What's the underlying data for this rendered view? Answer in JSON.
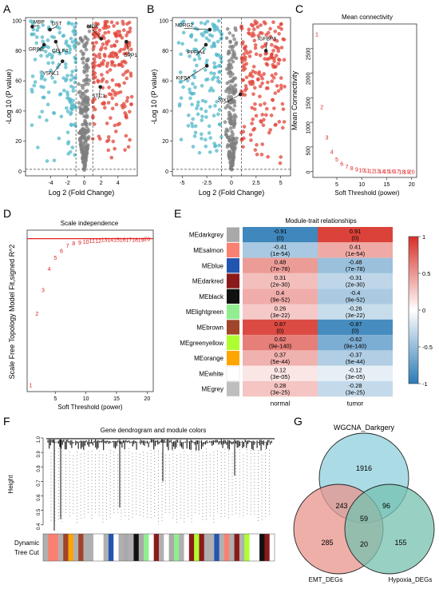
{
  "panel_letters": [
    "A",
    "B",
    "C",
    "D",
    "E",
    "F",
    "G"
  ],
  "colors": {
    "up": "#e2463a",
    "down": "#54b9c9",
    "ns": "#7f7f7f",
    "threshold_text": "#e02020",
    "threshold_line": "#e02020",
    "heat_pos": "#d73027",
    "heat_neg": "#2c7bb6",
    "venn_wgcna": "#8fd0de",
    "venn_emt": "#e8948c",
    "venn_hypoxia": "#76c2b0"
  },
  "chart_data": [
    {
      "panel": "A",
      "type": "scatter",
      "title": "",
      "xlabel": "Log 2 (Fold Change)",
      "ylabel": "-Log 10 (P value)",
      "xlim": [
        -7,
        6.3
      ],
      "ylim": [
        -3,
        102
      ],
      "xticks": [
        -4,
        -2,
        0,
        2,
        4
      ],
      "yticks": [
        0,
        20,
        40,
        60,
        80,
        100
      ],
      "fc_cutoff": [
        -1,
        1
      ],
      "p_cutoff": 1.3,
      "labels": [
        {
          "text": "MBP",
          "x": -6.2,
          "y": 96,
          "lx": -5.4,
          "ly": 98
        },
        {
          "text": "DST",
          "x": -4.1,
          "y": 94,
          "lx": -3.3,
          "ly": 97
        },
        {
          "text": "GRIN1",
          "x": -4.8,
          "y": 84,
          "lx": -5.7,
          "ly": 80
        },
        {
          "text": "CELF4",
          "x": -3.4,
          "y": 86,
          "lx": -2.9,
          "ly": 79
        },
        {
          "text": "VSNL1",
          "x": -2.6,
          "y": 73,
          "lx": -4.0,
          "ly": 64
        },
        {
          "text": "MDK",
          "x": 2.0,
          "y": 88,
          "lx": 1.0,
          "ly": 95
        },
        {
          "text": "SPP1",
          "x": 5.0,
          "y": 86,
          "lx": 5.5,
          "ly": 76
        },
        {
          "text": "STC1",
          "x": 1.9,
          "y": 56,
          "lx": 1.7,
          "ly": 49
        }
      ]
    },
    {
      "panel": "B",
      "type": "scatter",
      "title": "",
      "xlabel": "Log 2 (Fold Change)",
      "ylabel": "-Log 10 (P value)",
      "xlim": [
        -6,
        6
      ],
      "ylim": [
        -3,
        102
      ],
      "xticks": [
        -5.0,
        -2.5,
        0.0,
        2.5,
        5.0
      ],
      "yticks": [
        0,
        20,
        40,
        60,
        80,
        100
      ],
      "fc_cutoff": [
        -1,
        1
      ],
      "p_cutoff": 1.3,
      "labels": [
        {
          "text": "NDRG2",
          "x": -2.2,
          "y": 94,
          "lx": -4.8,
          "ly": 96
        },
        {
          "text": "PPFIA4",
          "x": -2.6,
          "y": 84,
          "lx": -3.6,
          "ly": 78
        },
        {
          "text": "IGFBP3",
          "x": 3.5,
          "y": 80,
          "lx": 3.6,
          "ly": 87
        },
        {
          "text": "KIF5A",
          "x": -2.5,
          "y": 70,
          "lx": -4.9,
          "ly": 61
        },
        {
          "text": "SIX1",
          "x": 0.9,
          "y": 51,
          "lx": -0.8,
          "ly": 46
        }
      ]
    },
    {
      "panel": "C",
      "type": "scatter",
      "title": "Mean connectivity",
      "xlabel": "Soft Threshold (power)",
      "ylabel": "Mean Connectivity",
      "xlim": [
        0.2,
        21
      ],
      "ylim": [
        -120,
        3000
      ],
      "xticks": [
        5,
        10,
        15,
        20
      ],
      "yticks": [
        0,
        500,
        1000,
        1500,
        2000,
        2500
      ],
      "x": [
        1,
        2,
        3,
        4,
        5,
        6,
        7,
        8,
        9,
        10,
        11,
        12,
        13,
        14,
        15,
        16,
        17,
        18,
        19,
        20
      ],
      "y": [
        2800,
        1320,
        700,
        410,
        255,
        165,
        110,
        75,
        52,
        38,
        28,
        21,
        16,
        12,
        9,
        7,
        6,
        5,
        4,
        3
      ],
      "point_labels": [
        "1",
        "2",
        "3",
        "4",
        "5",
        "6",
        "7",
        "8",
        "9",
        "10",
        "11",
        "12",
        "13",
        "14",
        "15",
        "16",
        "17",
        "18",
        "19",
        "20"
      ]
    },
    {
      "panel": "D",
      "type": "scatter",
      "title": "Scale independence",
      "xlabel": "Soft Threshold (power)",
      "ylabel": "Scale Free Topology Model Fit,signed R^2",
      "xlim": [
        0.4,
        21
      ],
      "ylim": [
        -0.9,
        1.0
      ],
      "xticks": [
        5,
        10,
        15,
        20
      ],
      "yticks": [],
      "hline": 0.9,
      "x": [
        1,
        2,
        3,
        4,
        5,
        6,
        7,
        8,
        9,
        10,
        11,
        12,
        13,
        14,
        15,
        16,
        17,
        18,
        19,
        20
      ],
      "y": [
        -0.82,
        0.02,
        0.3,
        0.55,
        0.68,
        0.76,
        0.82,
        0.85,
        0.86,
        0.87,
        0.88,
        0.88,
        0.89,
        0.89,
        0.89,
        0.89,
        0.89,
        0.89,
        0.89,
        0.9
      ],
      "point_labels": [
        "1",
        "2",
        "3",
        "4",
        "5",
        "6",
        "7",
        "8",
        "9",
        "10",
        "11",
        "12",
        "13",
        "14",
        "15",
        "16",
        "17",
        "18",
        "19",
        "20"
      ]
    },
    {
      "panel": "E",
      "type": "heatmap",
      "title": "Module-trait relationships",
      "columns": [
        "normal",
        "tumor"
      ],
      "rows": [
        {
          "module": "MEdarkgrey",
          "swatch": "#a9a9a9",
          "cells": [
            {
              "r": -0.91,
              "p": "(0)"
            },
            {
              "r": 0.91,
              "p": "(0)"
            }
          ]
        },
        {
          "module": "MEsalmon",
          "swatch": "#fa8072",
          "cells": [
            {
              "r": -0.41,
              "p": "(1e-54)"
            },
            {
              "r": 0.41,
              "p": "(1e-54)"
            }
          ]
        },
        {
          "module": "MEblue",
          "swatch": "#2255b0",
          "cells": [
            {
              "r": 0.48,
              "p": "(7e-78)"
            },
            {
              "r": -0.48,
              "p": "(7e-78)"
            }
          ]
        },
        {
          "module": "MEdarkred",
          "swatch": "#8b1a1a",
          "cells": [
            {
              "r": 0.31,
              "p": "(2e-30)"
            },
            {
              "r": -0.31,
              "p": "(2e-30)"
            }
          ]
        },
        {
          "module": "MEblack",
          "swatch": "#111111",
          "cells": [
            {
              "r": 0.4,
              "p": "(9e-52)"
            },
            {
              "r": -0.4,
              "p": "(9e-52)"
            }
          ]
        },
        {
          "module": "MElightgreen",
          "swatch": "#90ee90",
          "cells": [
            {
              "r": 0.26,
              "p": "(3e-22)"
            },
            {
              "r": -0.26,
              "p": "(3e-22)"
            }
          ]
        },
        {
          "module": "MEbrown",
          "swatch": "#a0452a",
          "cells": [
            {
              "r": 0.87,
              "p": "(0)"
            },
            {
              "r": -0.87,
              "p": "(0)"
            }
          ]
        },
        {
          "module": "MEgreenyellow",
          "swatch": "#adff2f",
          "cells": [
            {
              "r": 0.62,
              "p": "(9e-140)"
            },
            {
              "r": -0.62,
              "p": "(9e-140)"
            }
          ]
        },
        {
          "module": "MEorange",
          "swatch": "#ffa500",
          "cells": [
            {
              "r": 0.37,
              "p": "(5e-44)"
            },
            {
              "r": -0.37,
              "p": "(5e-44)"
            }
          ]
        },
        {
          "module": "MEwhite",
          "swatch": "#ffffff",
          "cells": [
            {
              "r": 0.12,
              "p": "(3e-05)"
            },
            {
              "r": -0.12,
              "p": "(3e-05)"
            }
          ]
        },
        {
          "module": "MEgrey",
          "swatch": "#bebebe",
          "cells": [
            {
              "r": 0.28,
              "p": "(3e-25)"
            },
            {
              "r": -0.28,
              "p": "(3e-25)"
            }
          ]
        }
      ],
      "colorbar_ticks": [
        "1",
        "0.5",
        "0",
        "-0.5",
        "-1"
      ],
      "colorbar_values": [
        1,
        0.5,
        0,
        -0.5,
        -1
      ]
    },
    {
      "panel": "F",
      "type": "other",
      "title": "Gene dendrogram and module colors",
      "ylabel": "Height",
      "yticks": [
        "1.0",
        "0.9",
        "0.8",
        "0.7",
        "0.6",
        "0.5",
        "0.4"
      ],
      "ytick_values": [
        1.0,
        0.9,
        0.8,
        0.7,
        0.6,
        0.5,
        0.4
      ],
      "ylim": [
        0.36,
        1.0
      ],
      "colorbar_label": [
        "Dynamic",
        "Tree Cut"
      ],
      "module_colors": [
        "#b0b0b0",
        "#ffffff",
        "#b0b0b0",
        "#ffa500",
        "#b0b0b0",
        "#2255b0",
        "#b0b0b0",
        "#8b1a1a",
        "#b0b0b0",
        "#a0452a",
        "#90ee90",
        "#adff2f",
        "#b0b0b0",
        "#2255b0",
        "#fa8072",
        "#111111",
        "#8b1a1a",
        "#a9a9a9"
      ]
    },
    {
      "panel": "G",
      "type": "other",
      "sets": [
        {
          "name": "WGCNA_Darkgery",
          "color": "#8fd0de"
        },
        {
          "name": "EMT_DEGs",
          "color": "#e8948c"
        },
        {
          "name": "Hypoxia_DEGs",
          "color": "#76c2b0"
        }
      ],
      "regions": [
        {
          "sets": [
            "WGCNA_Darkgery"
          ],
          "value": 1916
        },
        {
          "sets": [
            "EMT_DEGs"
          ],
          "value": 285
        },
        {
          "sets": [
            "Hypoxia_DEGs"
          ],
          "value": 155
        },
        {
          "sets": [
            "WGCNA_Darkgery",
            "EMT_DEGs"
          ],
          "value": 243
        },
        {
          "sets": [
            "WGCNA_Darkgery",
            "Hypoxia_DEGs"
          ],
          "value": 96
        },
        {
          "sets": [
            "EMT_DEGs",
            "Hypoxia_DEGs"
          ],
          "value": 20
        },
        {
          "sets": [
            "WGCNA_Darkgery",
            "EMT_DEGs",
            "Hypoxia_DEGs"
          ],
          "value": 59
        }
      ]
    }
  ]
}
